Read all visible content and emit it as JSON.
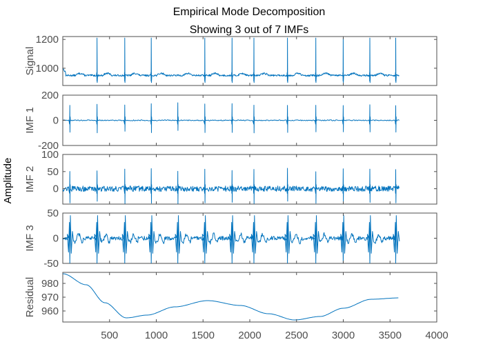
{
  "chart_data": {
    "type": "line",
    "title": "Empirical Mode Decomposition",
    "subtitle": "Showing 3 out of 7 IMFs",
    "ylabel": "Amplitude",
    "xlim": [
      0,
      4000
    ],
    "x_ticks": [
      500,
      1000,
      1500,
      2000,
      2500,
      3000,
      3500,
      4000
    ],
    "line_color": "#0072bd",
    "n_samples": 3600,
    "beat_positions": [
      75,
      366,
      663,
      946,
      1230,
      1519,
      1810,
      2044,
      2403,
      2706,
      2999,
      3284,
      3561
    ],
    "panels": [
      {
        "name": "Signal",
        "ylabel": "Signal",
        "ylim": [
          880,
          1220
        ],
        "yticks": [
          1000,
          1200
        ],
        "baseline": 950,
        "spike_high": 1210,
        "spike_low": 900
      },
      {
        "name": "IMF 1",
        "ylabel": "IMF 1",
        "ylim": [
          -200,
          200
        ],
        "yticks": [
          -200,
          0,
          200
        ],
        "spike_high": 140,
        "spike_low": -100
      },
      {
        "name": "IMF 2",
        "ylabel": "IMF 2",
        "ylim": [
          -45,
          100
        ],
        "yticks": [
          0,
          50,
          100
        ],
        "spike_high": 60,
        "spike_low": -45
      },
      {
        "name": "IMF 3",
        "ylabel": "IMF 3",
        "ylim": [
          -50,
          50
        ],
        "yticks": [
          -50,
          0,
          50
        ],
        "spike_high": 45,
        "spike_low": -50
      },
      {
        "name": "Residual",
        "ylabel": "Residual",
        "ylim": [
          952,
          988
        ],
        "yticks": [
          960,
          970,
          980
        ],
        "curve": [
          [
            1,
            987
          ],
          [
            250,
            979
          ],
          [
            450,
            966
          ],
          [
            680,
            955
          ],
          [
            900,
            957
          ],
          [
            1200,
            963
          ],
          [
            1550,
            967.5
          ],
          [
            1900,
            964
          ],
          [
            2200,
            958
          ],
          [
            2480,
            953.5
          ],
          [
            2750,
            956
          ],
          [
            3000,
            962
          ],
          [
            3300,
            968.5
          ],
          [
            3600,
            969.5
          ]
        ]
      }
    ]
  }
}
